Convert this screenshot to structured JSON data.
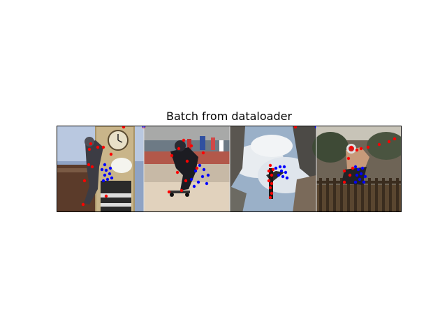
{
  "title": "Batch from dataloader",
  "colors": {
    "keypoint_primary": "#ff0000",
    "keypoint_secondary": "#0000ff",
    "axes_border": "#000000",
    "background": "#ffffff"
  },
  "batch": [
    {
      "name": "photo-1",
      "scene": "skater jumping in front of clock tower"
    },
    {
      "name": "photo-2",
      "scene": "skateboarder on street ramp with crowd"
    },
    {
      "name": "photo-3",
      "scene": "skater silhouette against cloudy sky with buildings"
    },
    {
      "name": "photo-4",
      "scene": "shirtless skater mid-air above fence in park"
    }
  ]
}
